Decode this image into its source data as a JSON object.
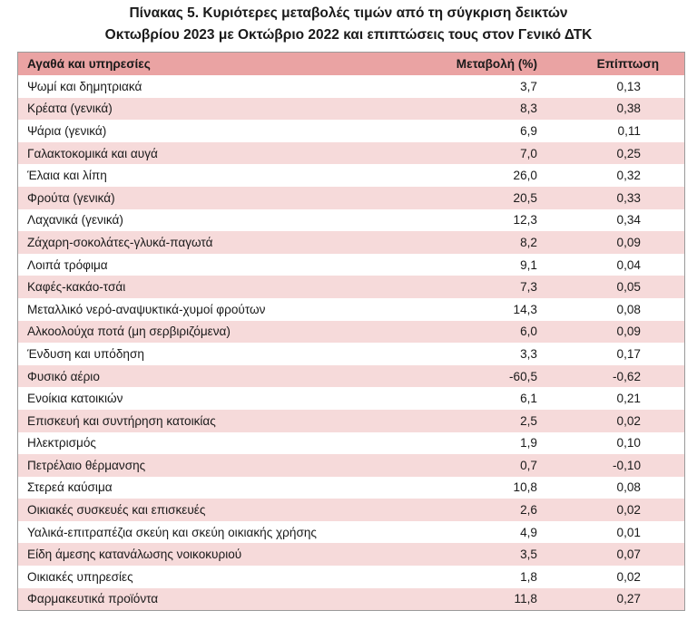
{
  "title_line1": "Πίνακας  5. Κυριότερες μεταβολές τιμών από τη σύγκριση δεικτών",
  "title_line2": "Οκτωβρίου 2023 με Οκτώβριο 2022 και επιπτώσεις τους στον Γενικό ΔΤΚ",
  "headers": {
    "item": "Αγαθά και υπηρεσίες",
    "change": "Μεταβολή (%)",
    "impact": "Επίπτωση"
  },
  "colors": {
    "header_bg": "#eaa3a3",
    "shade_bg": "#f6dada",
    "border": "#9a9a9a"
  },
  "rows": [
    {
      "item": "Ψωμί και δημητριακά",
      "change": "3,7",
      "impact": "0,13"
    },
    {
      "item": "Κρέατα (γενικά)",
      "change": "8,3",
      "impact": "0,38"
    },
    {
      "item": "Ψάρια (γενικά)",
      "change": "6,9",
      "impact": "0,11"
    },
    {
      "item": "Γαλακτοκομικά και αυγά",
      "change": "7,0",
      "impact": "0,25"
    },
    {
      "item": "Έλαια και λίπη",
      "change": "26,0",
      "impact": "0,32"
    },
    {
      "item": "Φρούτα (γενικά)",
      "change": "20,5",
      "impact": "0,33"
    },
    {
      "item": "Λαχανικά (γενικά)",
      "change": "12,3",
      "impact": "0,34"
    },
    {
      "item": "Ζάχαρη-σοκολάτες-γλυκά-παγωτά",
      "change": "8,2",
      "impact": "0,09"
    },
    {
      "item": "Λοιπά τρόφιμα",
      "change": "9,1",
      "impact": "0,04"
    },
    {
      "item": "Καφές-κακάο-τσάι",
      "change": "7,3",
      "impact": "0,05"
    },
    {
      "item": "Μεταλλικό νερό-αναψυκτικά-χυμοί φρούτων",
      "change": "14,3",
      "impact": "0,08"
    },
    {
      "item": "Αλκοολούχα ποτά (μη σερβιριζόμενα)",
      "change": "6,0",
      "impact": "0,09"
    },
    {
      "item": "Ένδυση και υπόδηση",
      "change": "3,3",
      "impact": "0,17"
    },
    {
      "item": "Φυσικό αέριο",
      "change": "-60,5",
      "impact": "-0,62"
    },
    {
      "item": "Ενοίκια κατοικιών",
      "change": "6,1",
      "impact": "0,21"
    },
    {
      "item": "Επισκευή και συντήρηση κατοικίας",
      "change": "2,5",
      "impact": "0,02"
    },
    {
      "item": "Ηλεκτρισμός",
      "change": "1,9",
      "impact": "0,10"
    },
    {
      "item": "Πετρέλαιο θέρμανσης",
      "change": "0,7",
      "impact": "-0,10"
    },
    {
      "item": "Στερεά καύσιμα",
      "change": "10,8",
      "impact": "0,08"
    },
    {
      "item": "Οικιακές συσκευές και επισκευές",
      "change": "2,6",
      "impact": "0,02"
    },
    {
      "item": "Υαλικά-επιτραπέζια σκεύη και σκεύη οικιακής χρήσης",
      "change": "4,9",
      "impact": "0,01"
    },
    {
      "item": "Είδη άμεσης κατανάλωσης νοικοκυριού",
      "change": "3,5",
      "impact": "0,07"
    },
    {
      "item": "Οικιακές υπηρεσίες",
      "change": "1,8",
      "impact": "0,02"
    },
    {
      "item": "Φαρμακευτικά προϊόντα",
      "change": "11,8",
      "impact": "0,27"
    }
  ]
}
